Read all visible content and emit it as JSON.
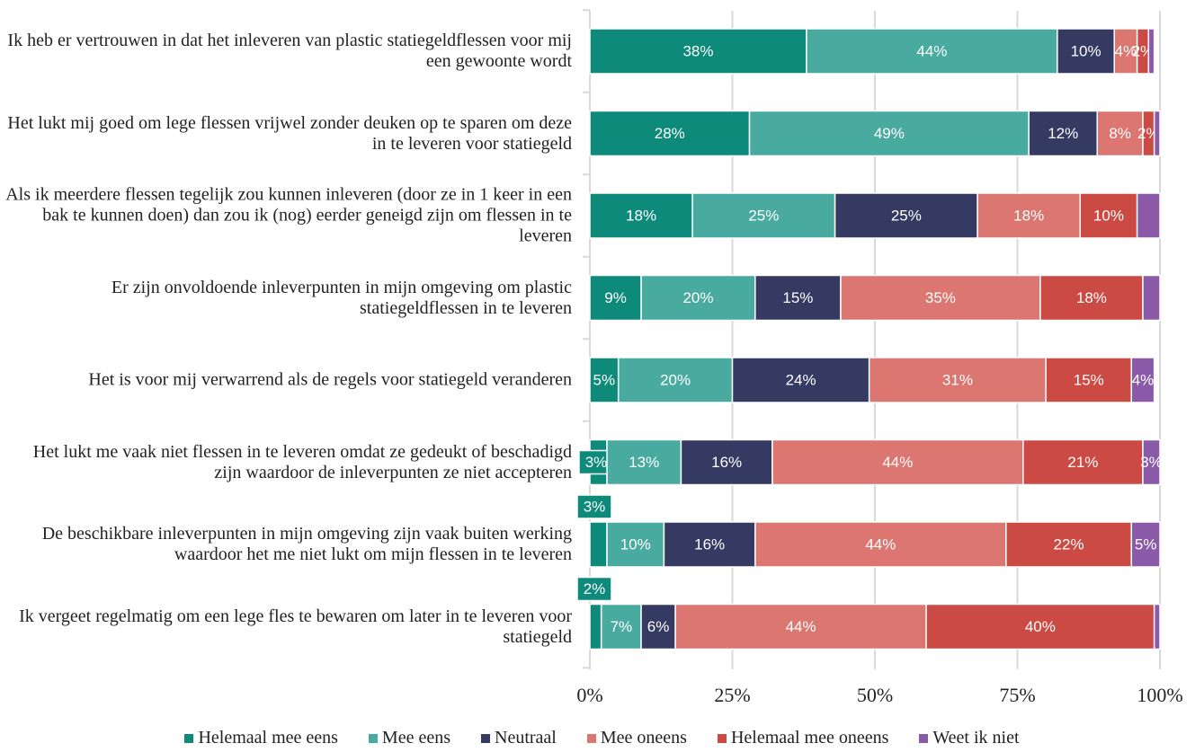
{
  "chart_data": {
    "type": "stacked-bar-horizontal",
    "categories": [
      "Ik heb er vertrouwen in dat het inleveren van plastic statiegeldflessen voor mij een gewoonte wordt",
      "Het lukt mij goed om lege flessen vrijwel zonder deuken op te sparen om deze in te leveren voor statiegeld",
      "Als ik meerdere flessen tegelijk zou kunnen inleveren (door ze in 1 keer in een bak te kunnen doen) dan zou ik (nog) eerder geneigd zijn om flessen in te leveren",
      "Er zijn onvoldoende inleverpunten in mijn omgeving om plastic statiegeldflessen in te leveren",
      "Het is voor mij verwarrend als de regels voor statiegeld veranderen",
      "Het lukt me vaak niet flessen in te leveren omdat ze gedeukt of beschadigd zijn waardoor de inleverpunten ze niet accepteren",
      "De beschikbare inleverpunten in mijn omgeving zijn vaak buiten werking waardoor het me niet lukt om mijn flessen in te leveren",
      "Ik vergeet regelmatig om een lege fles te bewaren om later in te leveren voor statiegeld"
    ],
    "series": [
      {
        "name": "Helemaal mee eens",
        "color": "#0e8a7a",
        "values": [
          38,
          28,
          18,
          9,
          5,
          3,
          3,
          2
        ],
        "value_labels": [
          "38%",
          "28%",
          "18%",
          "9%",
          "5%",
          "3%",
          "3%",
          "2%"
        ]
      },
      {
        "name": "Mee eens",
        "color": "#49aba0",
        "values": [
          44,
          49,
          25,
          20,
          20,
          13,
          10,
          7
        ],
        "value_labels": [
          "44%",
          "49%",
          "25%",
          "20%",
          "20%",
          "13%",
          "10%",
          "7%"
        ]
      },
      {
        "name": "Neutraal",
        "color": "#353a63",
        "values": [
          10,
          12,
          25,
          15,
          24,
          16,
          16,
          6
        ],
        "value_labels": [
          "10%",
          "12%",
          "25%",
          "15%",
          "24%",
          "16%",
          "16%",
          "6%"
        ]
      },
      {
        "name": "Mee oneens",
        "color": "#dc7670",
        "values": [
          4,
          8,
          18,
          35,
          31,
          44,
          44,
          44
        ],
        "value_labels": [
          "4%",
          "8%",
          "18%",
          "35%",
          "31%",
          "44%",
          "44%",
          "44%"
        ]
      },
      {
        "name": "Helemaal mee oneens",
        "color": "#cc4a44",
        "values": [
          2,
          2,
          10,
          18,
          15,
          21,
          22,
          40
        ],
        "value_labels": [
          "2%",
          "2%",
          "10%",
          "18%",
          "15%",
          "21%",
          "22%",
          "40%"
        ]
      },
      {
        "name": "Weet ik niet",
        "color": "#8a5aa8",
        "values": [
          1,
          1,
          4,
          3,
          4,
          3,
          5,
          1
        ],
        "value_labels": [
          null,
          null,
          null,
          null,
          "4%",
          "3%",
          "5%",
          null
        ]
      }
    ],
    "xlim": [
      0,
      100
    ],
    "xticks": [
      {
        "value": 0,
        "label": "0%"
      },
      {
        "value": 25,
        "label": "25%"
      },
      {
        "value": 50,
        "label": "50%"
      },
      {
        "value": 75,
        "label": "75%"
      },
      {
        "value": 100,
        "label": "100%"
      }
    ],
    "grid": true
  }
}
